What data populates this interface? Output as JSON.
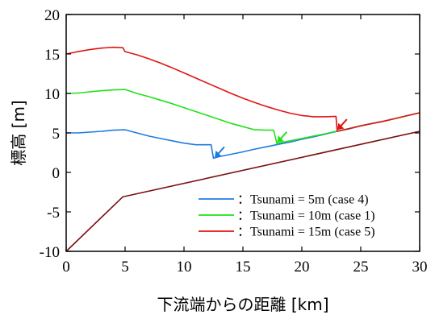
{
  "chart_data": {
    "type": "line",
    "xlabel": "下流端からの距離 [km]",
    "ylabel": "標高 [m]",
    "xlim": [
      0,
      30
    ],
    "ylim": [
      -10,
      20
    ],
    "xticks": [
      0,
      5,
      10,
      15,
      20,
      25,
      30
    ],
    "yticks": [
      -10,
      -5,
      0,
      5,
      10,
      15,
      20
    ],
    "grid": false,
    "legend_position": "bottom-right",
    "series": [
      {
        "name": "：Tsunami = 5m (case 4)",
        "color": "#1e7be0",
        "x": [
          0,
          1,
          2,
          3,
          4,
          5,
          6,
          7,
          8,
          9,
          10,
          11,
          12.3,
          12.5,
          13,
          14,
          15,
          16,
          17,
          18,
          19,
          20,
          21,
          22,
          23,
          24,
          25,
          26,
          27,
          28,
          29,
          30
        ],
        "y": [
          5.0,
          5.0,
          5.1,
          5.2,
          5.35,
          5.4,
          5.0,
          4.6,
          4.3,
          4.0,
          3.7,
          3.5,
          3.5,
          1.8,
          2.0,
          2.3,
          2.6,
          2.95,
          3.25,
          3.55,
          3.85,
          4.2,
          4.5,
          4.85,
          5.2,
          5.5,
          5.9,
          6.2,
          6.5,
          6.85,
          7.2,
          7.55
        ]
      },
      {
        "name": "：Tsunami = 10m (case 1)",
        "color": "#22e01a",
        "x": [
          0,
          1,
          2,
          3,
          4,
          5,
          6,
          7,
          8,
          9,
          10,
          11,
          12,
          13,
          14,
          15,
          16,
          17,
          17.6,
          17.9,
          18,
          19,
          20,
          21,
          22,
          23,
          24,
          25,
          26,
          27,
          28,
          29,
          30
        ],
        "y": [
          10.0,
          10.05,
          10.2,
          10.35,
          10.45,
          10.5,
          10.0,
          9.6,
          9.15,
          8.7,
          8.2,
          7.7,
          7.2,
          6.7,
          6.2,
          5.8,
          5.4,
          5.35,
          5.35,
          3.6,
          3.7,
          4.0,
          4.3,
          4.6,
          4.9,
          5.25,
          5.55,
          5.9,
          6.2,
          6.5,
          6.85,
          7.2,
          7.55
        ]
      },
      {
        "name": "：Tsunami = 15m (case 5)",
        "color": "#e01414",
        "x": [
          0,
          1,
          2,
          3,
          4,
          4.8,
          5,
          6,
          7,
          8,
          9,
          10,
          11,
          12,
          13,
          14,
          15,
          16,
          17,
          18,
          19,
          20,
          21,
          22,
          22.9,
          23.0,
          24,
          25,
          26,
          27,
          28,
          29,
          30
        ],
        "y": [
          15.0,
          15.3,
          15.55,
          15.75,
          15.85,
          15.8,
          15.3,
          14.9,
          14.4,
          13.85,
          13.25,
          12.6,
          11.95,
          11.3,
          10.65,
          10.0,
          9.4,
          8.85,
          8.35,
          7.9,
          7.5,
          7.2,
          7.05,
          7.05,
          7.1,
          5.2,
          5.55,
          5.9,
          6.2,
          6.5,
          6.85,
          7.2,
          7.55
        ]
      },
      {
        "color": "#7a1010",
        "x": [
          0,
          4.8,
          30
        ],
        "y": [
          -10.0,
          -3.1,
          5.2
        ]
      }
    ],
    "annotations": [
      {
        "type": "arrow",
        "color": "#1e7be0",
        "x": 12.6,
        "y": 1.9
      },
      {
        "type": "arrow",
        "color": "#22e01a",
        "x": 17.9,
        "y": 3.8
      },
      {
        "type": "arrow",
        "color": "#e01414",
        "x": 23.0,
        "y": 5.4
      }
    ]
  }
}
